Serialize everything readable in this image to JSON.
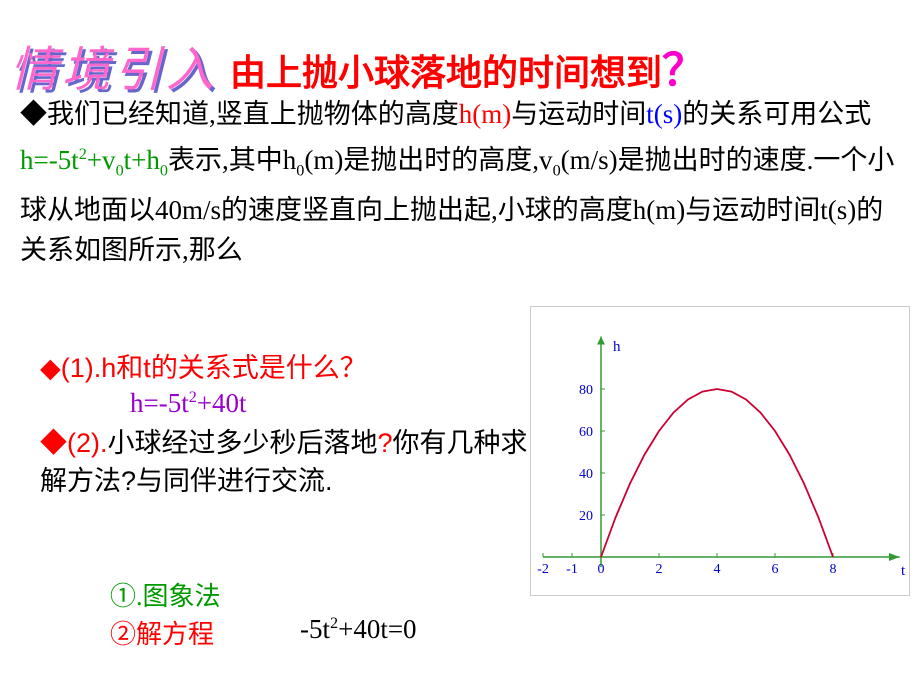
{
  "header": {
    "scenario_label": "情境引入",
    "title": "由上抛小球落地的时间想到",
    "qmark": "？"
  },
  "paragraph": {
    "bullet": "◆",
    "text1": "我们已经知道,竖直上抛物体的高度",
    "h_m": "h(m)",
    "text2": "与运动时间",
    "t_s": "t(s)",
    "text3": "的关系可用公式",
    "formula": "h=-5t",
    "sq": "2",
    "formula2": "+v",
    "sub0a": "0",
    "formula3": "t+h",
    "sub0b": "0",
    "text4": "表示,其中h",
    "sub0c": "0",
    "text5": "(m)是抛出时的高度,v",
    "sub0d": "0",
    "text6": "(m/s)是抛出时的速度.一个小球从地面以40m/s的速度竖直向上抛出起,小球的高度h(m)与运动时间t(s)的关系如图所示,那么"
  },
  "q1": {
    "bullet": "◆",
    "label": "(1).h",
    "and": "和",
    "t": "t",
    "rest": "的关系式是什么？"
  },
  "answer1": {
    "text": "h=-5t",
    "sq": "2",
    "tail": "+40t"
  },
  "q2": {
    "bullet": "◆",
    "label": "(2).",
    "text1": "小球经过多少秒后落地",
    "qm": "?",
    "text2": "你有几种求解方法",
    "qm2": "?",
    "text3": "与同伴进行交流."
  },
  "method1": {
    "text": "①.图象法"
  },
  "method2": {
    "text": "②解方程"
  },
  "eq2": {
    "text": "-5t",
    "sq": "2",
    "tail": "+40t=0"
  },
  "chart": {
    "type": "line",
    "xlabel": "t",
    "ylabel": "h",
    "x_ticks": [
      -2,
      -1,
      0,
      2,
      4,
      6,
      8
    ],
    "y_ticks": [
      20,
      40,
      60,
      80
    ],
    "ylim": [
      0,
      100
    ],
    "xlim": [
      -2,
      10
    ],
    "curve_color": "#cc0033",
    "axis_color": "#339933",
    "tick_label_color": "#0000cc",
    "axis_label_color": "#0000cc",
    "background": "#ffffff",
    "curve_points": [
      [
        0,
        0
      ],
      [
        0.5,
        18.75
      ],
      [
        1,
        35
      ],
      [
        1.5,
        48.75
      ],
      [
        2,
        60
      ],
      [
        2.5,
        68.75
      ],
      [
        3,
        75
      ],
      [
        3.5,
        78.75
      ],
      [
        4,
        80
      ],
      [
        4.5,
        78.75
      ],
      [
        5,
        75
      ],
      [
        5.5,
        68.75
      ],
      [
        6,
        60
      ],
      [
        6.5,
        48.75
      ],
      [
        7,
        35
      ],
      [
        7.5,
        18.75
      ],
      [
        8,
        0
      ]
    ]
  }
}
